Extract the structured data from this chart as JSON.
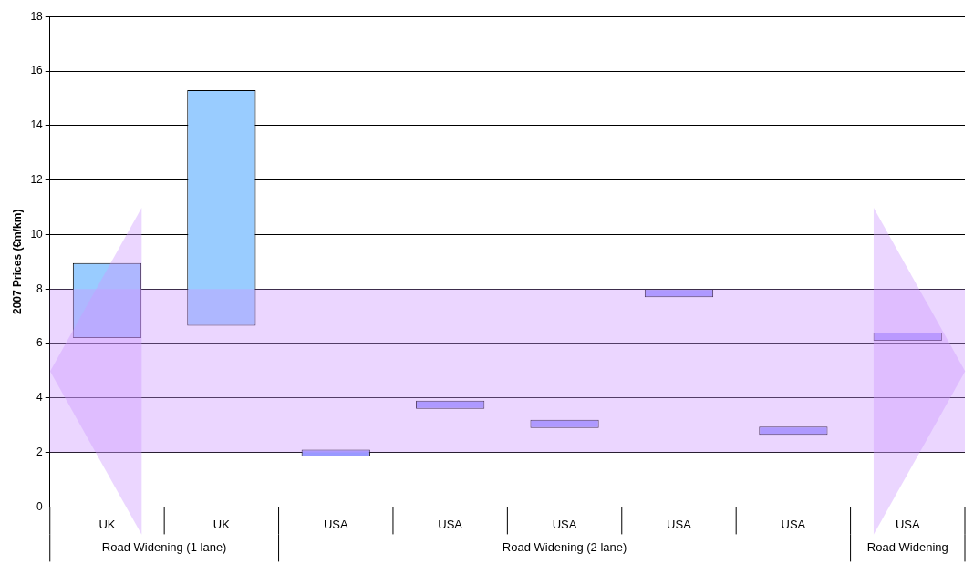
{
  "chart_data": {
    "type": "bar",
    "ylabel": "2007 Prices (€m/km)",
    "categories": [
      "UK",
      "UK",
      "USA",
      "USA",
      "USA",
      "USA",
      "USA",
      "USA"
    ],
    "values": [
      2.75,
      8.65,
      0.25,
      0.3,
      0.3,
      0.3,
      0.3,
      0.3
    ],
    "base": [
      6.2,
      6.65,
      1.85,
      3.6,
      2.9,
      7.7,
      2.65,
      6.1
    ],
    "colors": [
      "#99ccff",
      "#99ccff",
      "#9999ff",
      "#9999ff",
      "#9999ff",
      "#9999ff",
      "#9999ff",
      "#9999ff"
    ],
    "ylim": [
      0,
      18
    ],
    "yticks": [
      0,
      2,
      4,
      6,
      8,
      10,
      12,
      14,
      16,
      18
    ],
    "grid": "y",
    "legend": false,
    "bands": [
      {
        "axis": "y",
        "from": 2,
        "to": 8,
        "color": "#cc99ff"
      }
    ],
    "annotations": [
      "Road Widening (1 lane)",
      "Road Widening (2 lane)",
      "Road Widening"
    ]
  }
}
